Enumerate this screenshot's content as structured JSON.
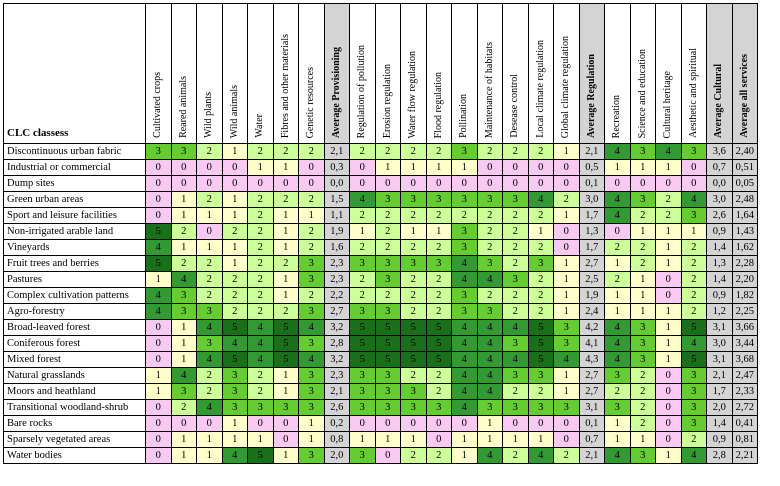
{
  "chart_data": {
    "type": "table",
    "row_header": "CLC classess",
    "columns": [
      "Cultivated crops",
      "Reared animals",
      "Wild plants",
      "Wild animals",
      "Water",
      "Fibres and other materials",
      "Genetic resources",
      "Average Provisioning",
      "Regulation of pollution",
      "Erosion regulation",
      "Water flow regulation",
      "Flood regulation",
      "Pollination",
      "Maintenance of habitats",
      "Desease control",
      "Local climate regulation",
      "Global climate regulation",
      "Average Regulation",
      "Recreation",
      "Science and education",
      "Cultural heritage",
      "Aesthetic and spiritual",
      "Average Cultural",
      "Average all services"
    ],
    "average_columns": [
      7,
      17,
      22,
      23
    ],
    "score_colors": {
      "0": "#f7c9f3",
      "1": "#ffffcc",
      "2": "#ccff99",
      "3": "#66cc33",
      "4": "#339933",
      "5": "#1a6f1a"
    },
    "average_color": "#d4d4d4",
    "rows": [
      {
        "name": "Discontinuous urban fabric",
        "values": [
          "3",
          "3",
          "2",
          "1",
          "2",
          "2",
          "2",
          "2,1",
          "2",
          "2",
          "2",
          "2",
          "3",
          "2",
          "2",
          "2",
          "1",
          "2,1",
          "4",
          "3",
          "4",
          "3",
          "3,6",
          "2,40"
        ]
      },
      {
        "name": "Industrial or commercial",
        "values": [
          "0",
          "0",
          "0",
          "0",
          "1",
          "1",
          "0",
          "0,3",
          "0",
          "1",
          "1",
          "1",
          "1",
          "0",
          "0",
          "0",
          "0",
          "0,5",
          "1",
          "1",
          "1",
          "0",
          "0,7",
          "0,51"
        ]
      },
      {
        "name": "Dump sites",
        "values": [
          "0",
          "0",
          "0",
          "0",
          "0",
          "0",
          "0",
          "0,0",
          "0",
          "0",
          "0",
          "0",
          "0",
          "0",
          "0",
          "0",
          "0",
          "0,1",
          "0",
          "0",
          "0",
          "0",
          "0,0",
          "0,05"
        ]
      },
      {
        "name": "Green urban areas",
        "values": [
          "0",
          "1",
          "2",
          "1",
          "2",
          "2",
          "2",
          "1,5",
          "4",
          "3",
          "3",
          "3",
          "3",
          "3",
          "3",
          "4",
          "2",
          "3,0",
          "4",
          "3",
          "2",
          "4",
          "3,0",
          "2,48"
        ]
      },
      {
        "name": "Sport and leisure facilities",
        "values": [
          "0",
          "1",
          "1",
          "1",
          "2",
          "1",
          "1",
          "1,1",
          "2",
          "2",
          "2",
          "2",
          "2",
          "2",
          "2",
          "2",
          "1",
          "1,7",
          "4",
          "2",
          "2",
          "3",
          "2,6",
          "1,64"
        ]
      },
      {
        "name": "Non-irrigated arable land",
        "values": [
          "5",
          "2",
          "0",
          "2",
          "2",
          "1",
          "2",
          "1,9",
          "1",
          "2",
          "1",
          "1",
          "3",
          "2",
          "2",
          "1",
          "0",
          "1,3",
          "0",
          "1",
          "1",
          "1",
          "0,9",
          "1,43"
        ]
      },
      {
        "name": "Vineyards",
        "values": [
          "4",
          "1",
          "1",
          "1",
          "2",
          "1",
          "2",
          "1,6",
          "2",
          "2",
          "2",
          "2",
          "3",
          "2",
          "2",
          "2",
          "0",
          "1,7",
          "2",
          "2",
          "1",
          "2",
          "1,4",
          "1,62"
        ]
      },
      {
        "name": "Fruit trees and berries",
        "values": [
          "5",
          "2",
          "2",
          "1",
          "2",
          "2",
          "3",
          "2,3",
          "3",
          "3",
          "3",
          "3",
          "4",
          "3",
          "2",
          "3",
          "1",
          "2,7",
          "1",
          "2",
          "1",
          "2",
          "1,3",
          "2,28"
        ]
      },
      {
        "name": "Pastures",
        "values": [
          "1",
          "4",
          "2",
          "2",
          "2",
          "1",
          "3",
          "2,3",
          "2",
          "3",
          "2",
          "2",
          "4",
          "4",
          "3",
          "2",
          "1",
          "2,5",
          "2",
          "1",
          "0",
          "2",
          "1,4",
          "2,20"
        ]
      },
      {
        "name": "Complex cultivation patterns",
        "values": [
          "4",
          "3",
          "2",
          "2",
          "2",
          "1",
          "2",
          "2,2",
          "2",
          "2",
          "2",
          "2",
          "3",
          "2",
          "2",
          "2",
          "1",
          "1,9",
          "1",
          "1",
          "0",
          "2",
          "0,9",
          "1,82"
        ]
      },
      {
        "name": "Agro-forestry",
        "values": [
          "4",
          "3",
          "3",
          "2",
          "2",
          "2",
          "3",
          "2,7",
          "3",
          "3",
          "2",
          "2",
          "3",
          "3",
          "2",
          "2",
          "1",
          "2,4",
          "1",
          "1",
          "1",
          "2",
          "1,2",
          "2,25"
        ]
      },
      {
        "name": "Broad-leaved forest",
        "values": [
          "0",
          "1",
          "4",
          "5",
          "4",
          "5",
          "4",
          "3,2",
          "5",
          "5",
          "5",
          "5",
          "4",
          "4",
          "4",
          "5",
          "3",
          "4,2",
          "4",
          "3",
          "1",
          "5",
          "3,1",
          "3,66"
        ]
      },
      {
        "name": "Coniferous forest",
        "values": [
          "0",
          "1",
          "3",
          "4",
          "4",
          "5",
          "3",
          "2,8",
          "5",
          "5",
          "5",
          "5",
          "4",
          "4",
          "3",
          "5",
          "3",
          "4,1",
          "4",
          "3",
          "1",
          "4",
          "3,0",
          "3,44"
        ]
      },
      {
        "name": "Mixed forest",
        "values": [
          "0",
          "1",
          "4",
          "5",
          "4",
          "5",
          "4",
          "3,2",
          "5",
          "5",
          "5",
          "5",
          "4",
          "4",
          "4",
          "5",
          "4",
          "4,3",
          "4",
          "3",
          "1",
          "5",
          "3,1",
          "3,68"
        ]
      },
      {
        "name": "Natural grasslands",
        "values": [
          "1",
          "4",
          "2",
          "3",
          "2",
          "1",
          "3",
          "2,3",
          "3",
          "3",
          "2",
          "2",
          "4",
          "4",
          "3",
          "3",
          "1",
          "2,7",
          "3",
          "2",
          "0",
          "3",
          "2,1",
          "2,47"
        ]
      },
      {
        "name": "Moors and heathland",
        "values": [
          "1",
          "3",
          "2",
          "3",
          "2",
          "1",
          "3",
          "2,1",
          "3",
          "3",
          "3",
          "2",
          "4",
          "4",
          "2",
          "2",
          "1",
          "2,7",
          "2",
          "2",
          "0",
          "3",
          "1,7",
          "2,33"
        ]
      },
      {
        "name": "Transitional woodland-shrub",
        "values": [
          "0",
          "2",
          "4",
          "3",
          "3",
          "3",
          "3",
          "2,6",
          "3",
          "3",
          "3",
          "3",
          "4",
          "3",
          "3",
          "3",
          "3",
          "3,1",
          "3",
          "2",
          "0",
          "3",
          "2,0",
          "2,72"
        ]
      },
      {
        "name": "Bare rocks",
        "values": [
          "0",
          "0",
          "0",
          "1",
          "0",
          "0",
          "1",
          "0,2",
          "0",
          "0",
          "0",
          "0",
          "0",
          "1",
          "0",
          "0",
          "0",
          "0,1",
          "1",
          "2",
          "0",
          "3",
          "1,4",
          "0,41"
        ]
      },
      {
        "name": "Sparsely vegetated areas",
        "values": [
          "0",
          "1",
          "1",
          "1",
          "1",
          "0",
          "1",
          "0,8",
          "1",
          "1",
          "1",
          "0",
          "1",
          "1",
          "1",
          "1",
          "0",
          "0,7",
          "1",
          "1",
          "0",
          "2",
          "0,9",
          "0,81"
        ]
      },
      {
        "name": "Water bodies",
        "values": [
          "0",
          "1",
          "1",
          "4",
          "5",
          "1",
          "3",
          "2,0",
          "3",
          "0",
          "2",
          "2",
          "1",
          "4",
          "2",
          "4",
          "2",
          "2,1",
          "4",
          "3",
          "1",
          "4",
          "2,8",
          "2,21"
        ]
      }
    ]
  }
}
